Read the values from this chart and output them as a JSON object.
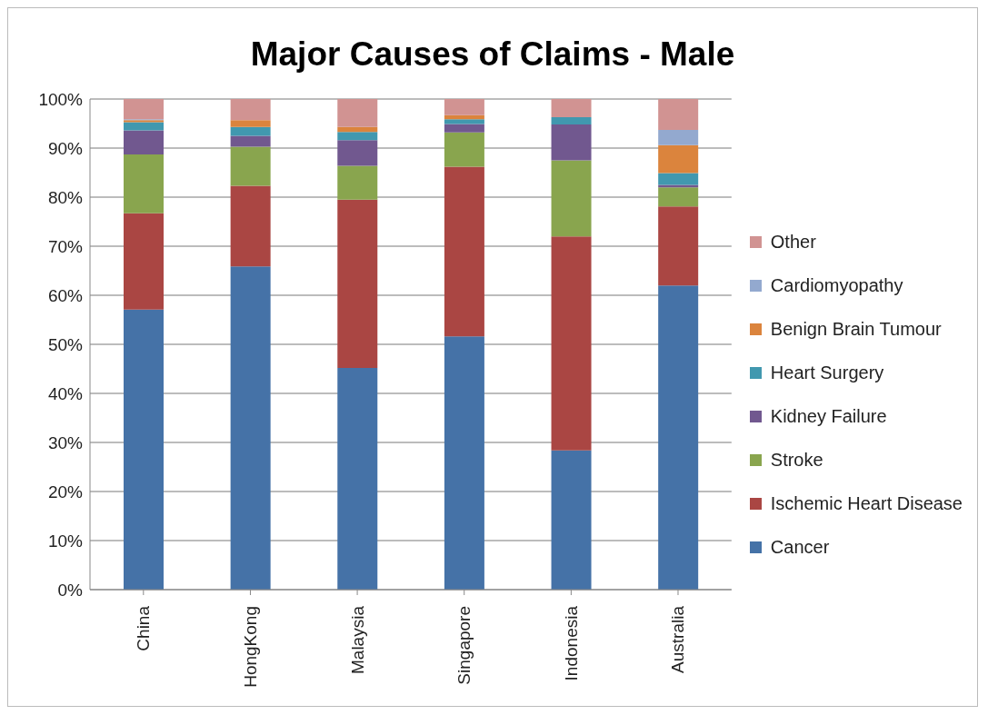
{
  "chart_data": {
    "type": "bar",
    "title": "Major Causes of Claims - Male",
    "stacked": true,
    "grid": "y",
    "legend": "right",
    "categories": [
      "China",
      "HongKong",
      "Malaysia",
      "Singapore",
      "Indonesia",
      "Australia"
    ],
    "ylim": [
      0,
      100
    ],
    "yticks": [
      {
        "value": 0,
        "label": "0%"
      },
      {
        "value": 10,
        "label": "10%"
      },
      {
        "value": 20,
        "label": "20%"
      },
      {
        "value": 30,
        "label": "30%"
      },
      {
        "value": 40,
        "label": "40%"
      },
      {
        "value": 50,
        "label": "50%"
      },
      {
        "value": 60,
        "label": "60%"
      },
      {
        "value": 70,
        "label": "70%"
      },
      {
        "value": 80,
        "label": "80%"
      },
      {
        "value": 90,
        "label": "90%"
      },
      {
        "value": 100,
        "label": "100%"
      }
    ],
    "series": [
      {
        "name": "Cancer",
        "color": "#4572a7",
        "values": [
          57.1,
          65.9,
          45.2,
          51.6,
          28.4,
          62
        ]
      },
      {
        "name": "Ischemic Heart Disease",
        "color": "#aa4643",
        "values": [
          19.6,
          16.4,
          34.3,
          34.6,
          43.6,
          16.1
        ]
      },
      {
        "name": "Stroke",
        "color": "#89a54e",
        "values": [
          12,
          8,
          6.9,
          7,
          15.5,
          3.9
        ]
      },
      {
        "name": "Kidney Failure",
        "color": "#71588f",
        "values": [
          4.9,
          2.2,
          5.2,
          1.7,
          7.3,
          0.5
        ]
      },
      {
        "name": "Heart Surgery",
        "color": "#4198af",
        "values": [
          1.7,
          1.8,
          1.7,
          1,
          1.5,
          2.4
        ]
      },
      {
        "name": "Benign Brain Tumour",
        "color": "#db843d",
        "values": [
          0.4,
          1.4,
          1,
          0.8,
          0,
          5.7
        ]
      },
      {
        "name": "Cardiomyopathy",
        "color": "#93a9cf",
        "values": [
          0.2,
          0,
          0,
          0,
          0,
          3.1
        ]
      },
      {
        "name": "Other",
        "color": "#d19392",
        "values": [
          4.1,
          4.3,
          5.7,
          3.3,
          3.7,
          6.3
        ]
      }
    ]
  }
}
